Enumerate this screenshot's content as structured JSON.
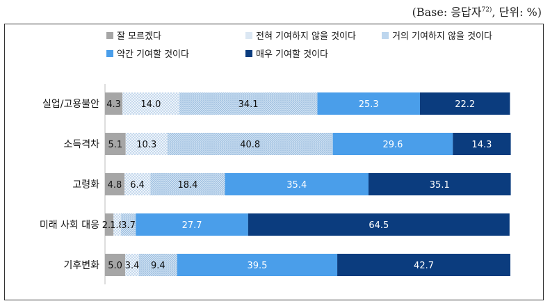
{
  "header": {
    "note_prefix": "(Base: 응답자",
    "note_sup": "72)",
    "note_suffix": ", 단위: %)"
  },
  "colors": {
    "dont_know": "#a6a6a6",
    "not_at_all": "#dbe7f3",
    "hardly": "#bdd6ee",
    "somewhat": "#4a9eea",
    "very_much": "#0b3c7e"
  },
  "chart_data": {
    "type": "bar",
    "orientation": "horizontal",
    "stacked": true,
    "unit": "%",
    "categories": [
      "실업/고용불안",
      "소득격차",
      "고령화",
      "미래 사회 대응",
      "기후변화"
    ],
    "series": [
      {
        "key": "dont_know",
        "name": "잘 모르겠다",
        "values": [
          4.3,
          5.1,
          4.8,
          2.1,
          5.0
        ]
      },
      {
        "key": "not_at_all",
        "name": "전혀 기여하지 않을 것이다",
        "values": [
          14.0,
          10.3,
          6.4,
          1.8,
          3.4
        ]
      },
      {
        "key": "hardly",
        "name": "거의 기여하지 않을 것이다",
        "values": [
          34.1,
          40.8,
          18.4,
          3.7,
          9.4
        ]
      },
      {
        "key": "somewhat",
        "name": "약간 기여할 것이다",
        "values": [
          25.3,
          29.6,
          35.4,
          27.7,
          39.5
        ]
      },
      {
        "key": "very_much",
        "name": "매우 기여할 것이다",
        "values": [
          22.2,
          14.3,
          35.1,
          64.5,
          42.7
        ]
      }
    ],
    "xlim": [
      0,
      100
    ],
    "legend": "top"
  }
}
